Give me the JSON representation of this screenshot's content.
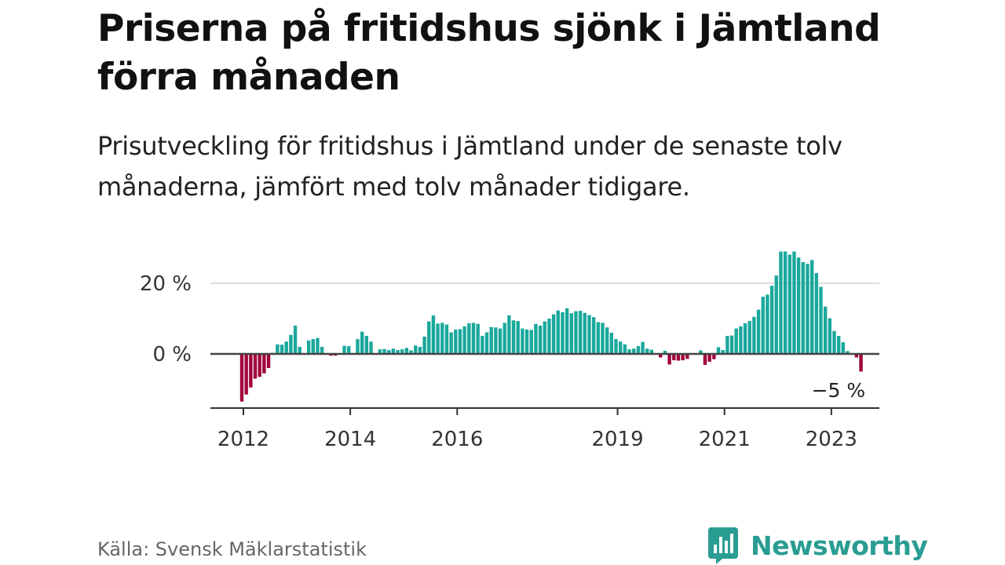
{
  "title": "Priserna på fritidshus sjönk i Jämtland förra månaden",
  "subtitle": "Prisutveckling för fritidshus i Jämtland under de senaste tolv månaderna, jämfört med tolv månader tidigare.",
  "source": "Källa: Svensk Mäklarstatistik",
  "brand": {
    "name": "Newsworthy",
    "icon": "newsworthy-logo-icon",
    "color": "#2a9d93"
  },
  "colors": {
    "positive": "#1aa89c",
    "negative": "#a0003c",
    "zero_line": "#444444",
    "grid": "#dddddd"
  },
  "chart_data": {
    "type": "bar",
    "title": "",
    "xlabel": "",
    "ylabel": "",
    "y_unit": "%",
    "ylim": [
      -16,
      32
    ],
    "grid": true,
    "y_ticks": [
      {
        "value": 0,
        "label": "0 %"
      },
      {
        "value": 20,
        "label": "20 %"
      }
    ],
    "x_ticks": [
      {
        "date": "2012-01",
        "label": "2012"
      },
      {
        "date": "2014-01",
        "label": "2014"
      },
      {
        "date": "2016-01",
        "label": "2016"
      },
      {
        "date": "2019-01",
        "label": "2019"
      },
      {
        "date": "2021-01",
        "label": "2021"
      },
      {
        "date": "2023-01",
        "label": "2023"
      }
    ],
    "start_month": "2012-01",
    "values": [
      -13.5,
      -11.5,
      -9.5,
      -7.0,
      -6.5,
      -5.5,
      -4.0,
      0.3,
      2.7,
      2.6,
      3.5,
      5.4,
      8.0,
      2.0,
      0.0,
      3.8,
      4.2,
      4.5,
      2.0,
      0.0,
      -0.5,
      -0.5,
      0.2,
      2.3,
      2.2,
      0.0,
      4.2,
      6.3,
      5.1,
      3.5,
      0.2,
      1.3,
      1.4,
      1.1,
      1.5,
      1.1,
      1.3,
      1.7,
      1.0,
      2.4,
      2.0,
      4.9,
      9.2,
      10.9,
      8.6,
      8.8,
      8.3,
      6.1,
      6.9,
      7.0,
      7.8,
      8.7,
      8.8,
      8.5,
      5.1,
      6.1,
      7.6,
      7.5,
      7.2,
      8.8,
      10.9,
      9.5,
      9.3,
      7.2,
      6.9,
      6.8,
      8.5,
      8.0,
      9.2,
      10.0,
      11.2,
      12.3,
      11.8,
      12.9,
      11.5,
      12.1,
      12.2,
      11.6,
      11.0,
      10.4,
      9.0,
      8.8,
      7.5,
      6.0,
      4.2,
      3.5,
      2.7,
      1.3,
      1.5,
      2.2,
      3.4,
      1.5,
      1.2,
      0.0,
      -1.0,
      0.9,
      -3.0,
      -1.8,
      -1.9,
      -1.8,
      -1.4,
      -0.2,
      0.0,
      1.0,
      -3.1,
      -2.2,
      -1.5,
      1.9,
      1.1,
      5.1,
      5.2,
      7.2,
      7.8,
      8.7,
      9.3,
      10.5,
      12.5,
      16.2,
      16.8,
      19.3,
      22.2,
      29.0,
      29.0,
      28.1,
      29.0,
      27.3,
      26.0,
      25.5,
      26.6,
      22.9,
      19.0,
      13.4,
      10.1,
      6.5,
      5.1,
      3.3,
      0.8,
      0.0,
      -1.0,
      -5.0
    ],
    "annotation": {
      "date": "2023-03",
      "label": "−5 %"
    }
  }
}
